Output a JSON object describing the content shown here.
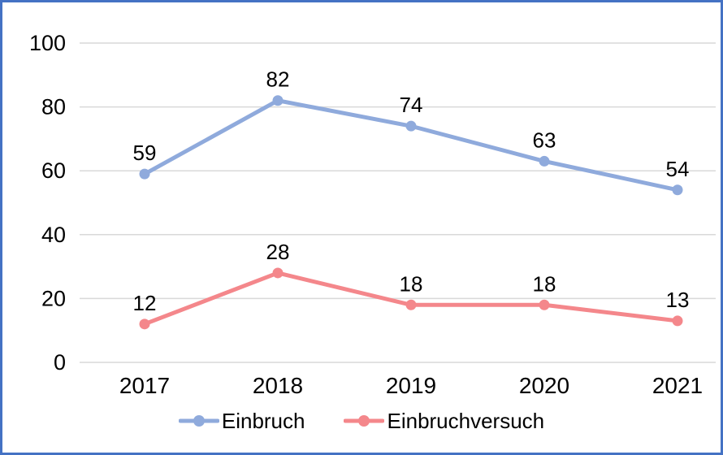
{
  "frame": {
    "border_color": "#4472C4",
    "background_color": "#FFFFFF"
  },
  "chart_data": {
    "type": "line",
    "categories": [
      "2017",
      "2018",
      "2019",
      "2020",
      "2021"
    ],
    "series": [
      {
        "name": "Einbruch",
        "values": [
          59,
          82,
          74,
          63,
          54
        ],
        "color": "#8FAADC"
      },
      {
        "name": "Einbruchversuch",
        "values": [
          12,
          28,
          18,
          18,
          13
        ],
        "color": "#F4878B"
      }
    ],
    "ylim": [
      0,
      100
    ],
    "yticks": [
      0,
      20,
      40,
      60,
      80,
      100
    ],
    "grid": true,
    "gridline_color": "#D9D9D9",
    "text_color": "#000000",
    "legend_position": "bottom",
    "data_labels": true,
    "marker": "circle"
  }
}
